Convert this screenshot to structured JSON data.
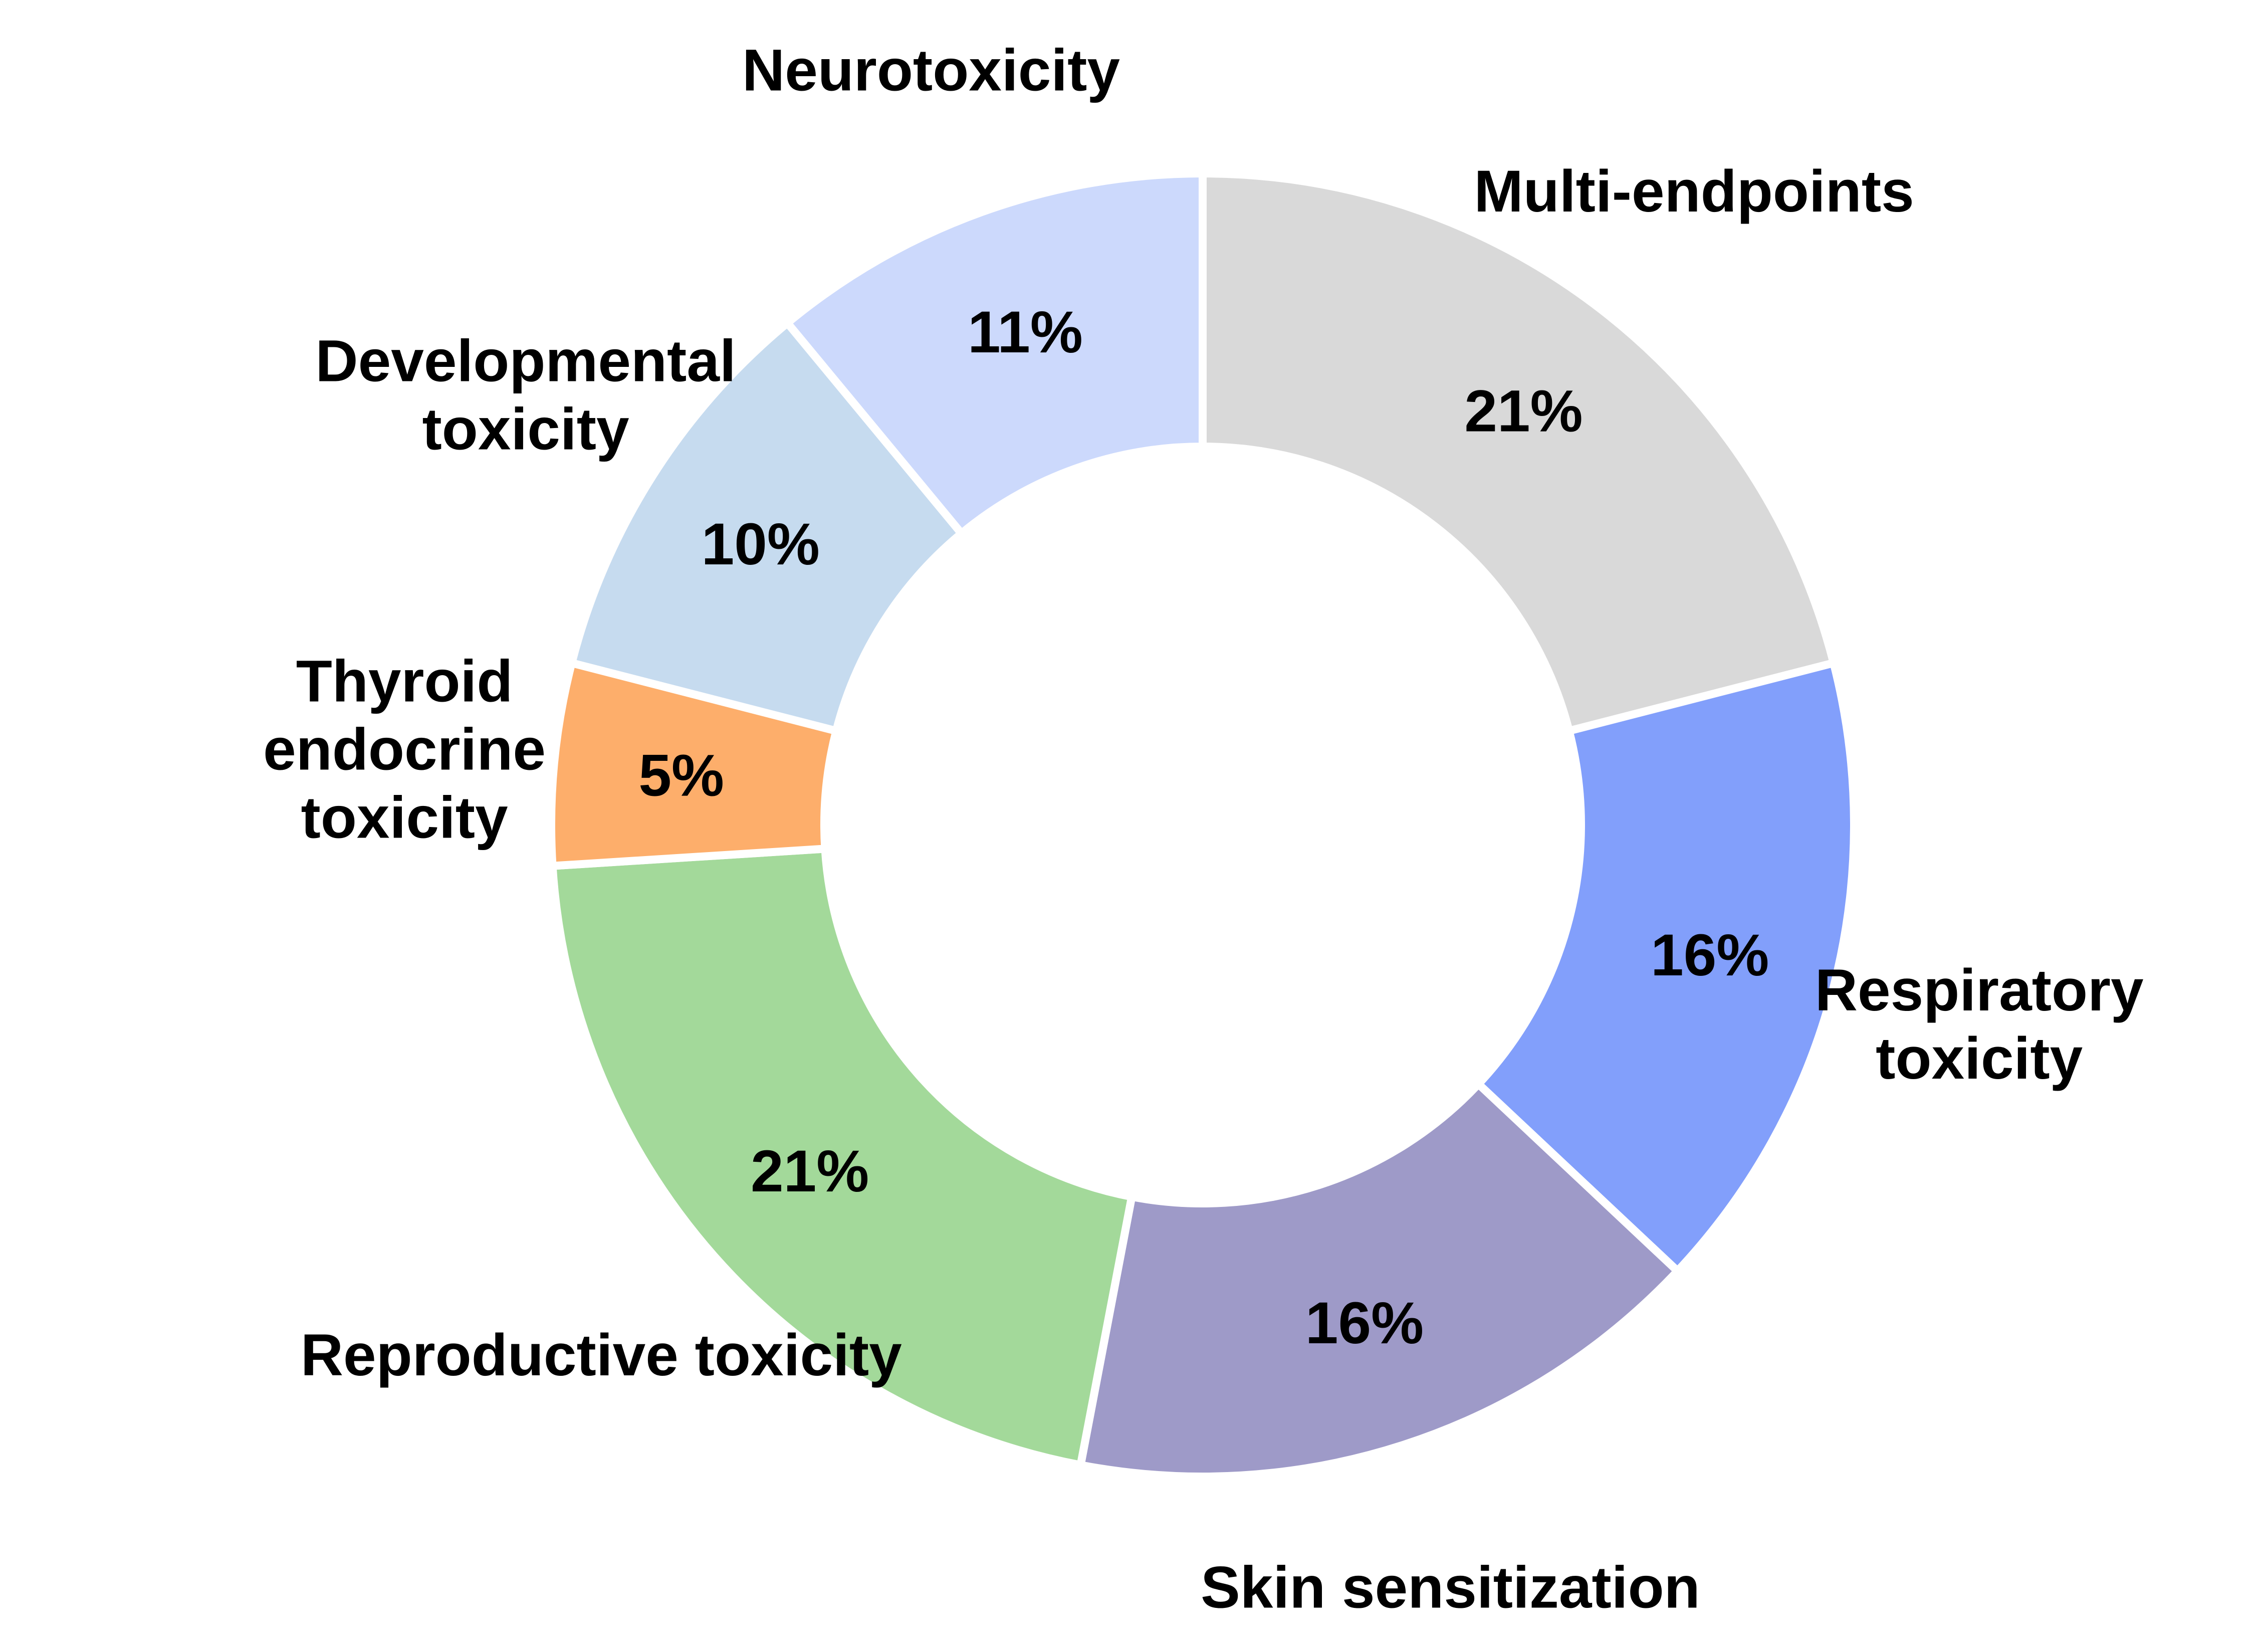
{
  "chart_data": {
    "type": "pie",
    "donut": true,
    "start": "top",
    "direction": "clockwise",
    "slices": [
      {
        "label": "Multi-endpoints",
        "label_lines": [
          "Multi-endpoints"
        ],
        "value": 21,
        "value_label": "21%",
        "color": "#d9d9d9"
      },
      {
        "label": "Respiratory toxicity",
        "label_lines": [
          "Respiratory",
          "toxicity"
        ],
        "value": 16,
        "value_label": "16%",
        "color": "#829ffb"
      },
      {
        "label": "Skin sensitization",
        "label_lines": [
          "Skin sensitization"
        ],
        "value": 16,
        "value_label": "16%",
        "color": "#9e9ac8"
      },
      {
        "label": "Reproductive toxicity",
        "label_lines": [
          "Reproductive toxicity"
        ],
        "value": 21,
        "value_label": "21%",
        "color": "#a3d99a"
      },
      {
        "label": "Thyroid endocrine toxicity",
        "label_lines": [
          "Thyroid",
          "endocrine",
          "toxicity"
        ],
        "value": 5,
        "value_label": "5%",
        "color": "#fdae6b"
      },
      {
        "label": "Developmental toxicity",
        "label_lines": [
          "Developmental",
          "toxicity"
        ],
        "value": 10,
        "value_label": "10%",
        "color": "#c6dbef"
      },
      {
        "label": "Neurotoxicity",
        "label_lines": [
          "Neurotoxicity"
        ],
        "value": 11,
        "value_label": "11%",
        "color": "#ccd9fc"
      }
    ]
  }
}
